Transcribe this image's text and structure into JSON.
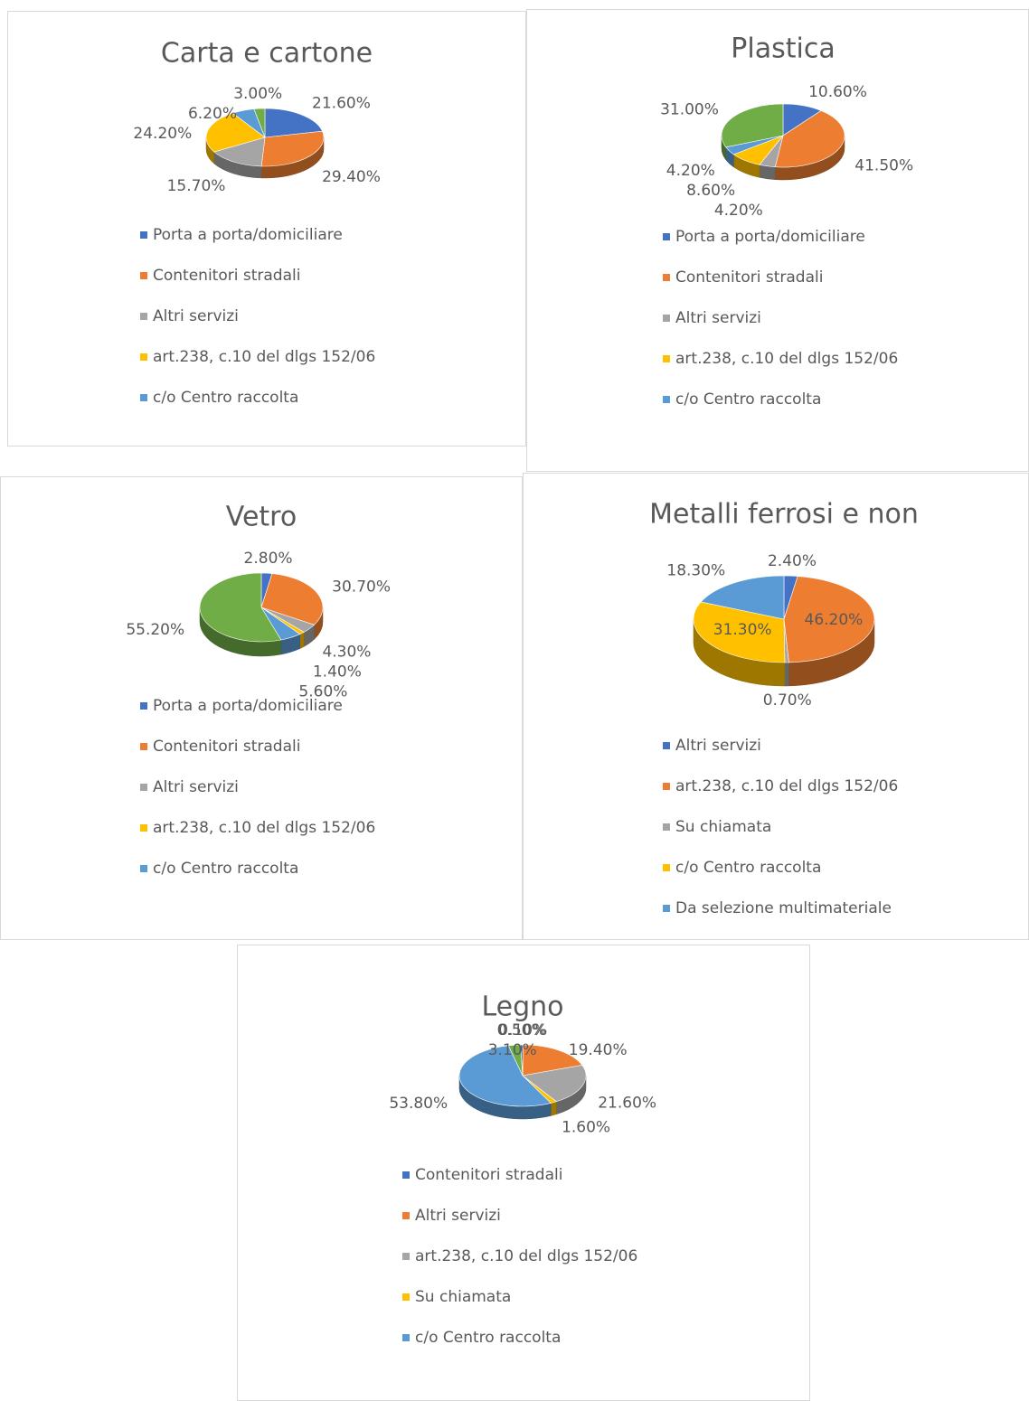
{
  "chart_data": [
    {
      "type": "pie",
      "title": "Carta e cartone",
      "categories": [
        "Porta a porta/domiciliare",
        "Contenitori stradali",
        "Altri servizi",
        "art.238, c.10 del dlgs 152/06",
        "c/o Centro raccolta",
        null
      ],
      "values": [
        21.6,
        29.4,
        15.7,
        24.2,
        6.2,
        3.0
      ],
      "value_labels": [
        "21.60%",
        "29.40%",
        "15.70%",
        "24.20%",
        "6.20%",
        "3.00%"
      ],
      "colors": [
        "#4472c4",
        "#ed7d31",
        "#a5a5a5",
        "#ffc000",
        "#5b9bd5",
        "#70ad47"
      ]
    },
    {
      "type": "pie",
      "title": "Plastica",
      "categories": [
        "Porta a porta/domiciliare",
        "Contenitori stradali",
        "Altri servizi",
        "art.238, c.10 del dlgs 152/06",
        "c/o Centro raccolta",
        null
      ],
      "values": [
        10.6,
        41.5,
        4.2,
        8.6,
        4.2,
        31.0
      ],
      "value_labels": [
        "10.60%",
        "41.50%",
        "4.20%",
        "8.60%",
        "4.20%",
        "31.00%"
      ],
      "colors": [
        "#4472c4",
        "#ed7d31",
        "#a5a5a5",
        "#ffc000",
        "#5b9bd5",
        "#70ad47"
      ]
    },
    {
      "type": "pie",
      "title": "Vetro",
      "categories": [
        "Porta a porta/domiciliare",
        "Contenitori stradali",
        "Altri servizi",
        "art.238, c.10 del dlgs 152/06",
        "c/o Centro raccolta",
        null
      ],
      "values": [
        2.8,
        30.7,
        4.3,
        1.4,
        5.6,
        55.2
      ],
      "value_labels": [
        "2.80%",
        "30.70%",
        "4.30%",
        "1.40%",
        "5.60%",
        "55.20%"
      ],
      "colors": [
        "#4472c4",
        "#ed7d31",
        "#a5a5a5",
        "#ffc000",
        "#5b9bd5",
        "#70ad47"
      ]
    },
    {
      "type": "pie",
      "title": "Metalli ferrosi e non",
      "categories": [
        "Altri servizi",
        "art.238, c.10 del dlgs 152/06",
        "Su chiamata",
        "c/o Centro raccolta",
        "Da selezione multimateriale"
      ],
      "values": [
        2.4,
        46.2,
        0.7,
        31.3,
        18.3
      ],
      "value_labels": [
        "2.40%",
        "46.20%",
        "0.70%",
        "31.30%",
        "18.30%"
      ],
      "colors": [
        "#4472c4",
        "#ed7d31",
        "#a5a5a5",
        "#ffc000",
        "#5b9bd5"
      ]
    },
    {
      "type": "pie",
      "title": "Legno",
      "categories": [
        "Contenitori stradali",
        "Altri servizi",
        "art.238, c.10 del dlgs 152/06",
        "Su chiamata",
        "c/o Centro raccolta",
        null,
        null
      ],
      "values": [
        0.1,
        19.4,
        21.6,
        1.6,
        53.8,
        3.1,
        0.5
      ],
      "value_labels": [
        "0.10%",
        "19.40%",
        "21.60%",
        "1.60%",
        "53.80%",
        "3.10%",
        "0.50%"
      ],
      "colors": [
        "#4472c4",
        "#ed7d31",
        "#a5a5a5",
        "#ffc000",
        "#5b9bd5",
        "#70ad47",
        "#264478"
      ]
    }
  ]
}
